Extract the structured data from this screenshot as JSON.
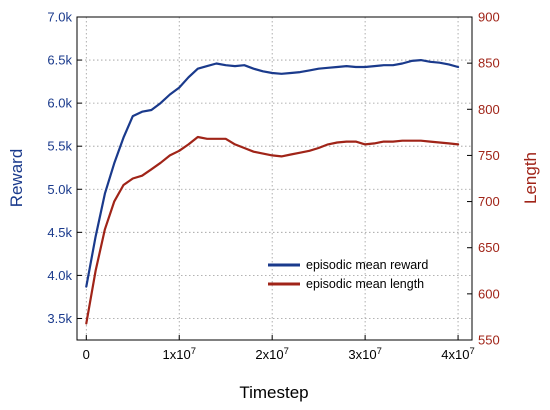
{
  "chart_data": {
    "type": "line",
    "xlabel": "Timestep",
    "ylabel_left": "Reward",
    "ylabel_right": "Length",
    "xlim": [
      -1000000,
      41500000
    ],
    "ylim_left": [
      3250,
      7000
    ],
    "ylim_right": [
      550,
      900
    ],
    "x_ticks": [
      {
        "value": 0,
        "base": "0",
        "exp": ""
      },
      {
        "value": 10000000,
        "base": "1x10",
        "exp": "7"
      },
      {
        "value": 20000000,
        "base": "2x10",
        "exp": "7"
      },
      {
        "value": 30000000,
        "base": "3x10",
        "exp": "7"
      },
      {
        "value": 40000000,
        "base": "4x10",
        "exp": "7"
      }
    ],
    "y_left_ticks": [
      {
        "value": 3500,
        "label": "3.5k"
      },
      {
        "value": 4000,
        "label": "4.0k"
      },
      {
        "value": 4500,
        "label": "4.5k"
      },
      {
        "value": 5000,
        "label": "5.0k"
      },
      {
        "value": 5500,
        "label": "5.5k"
      },
      {
        "value": 6000,
        "label": "6.0k"
      },
      {
        "value": 6500,
        "label": "6.5k"
      },
      {
        "value": 7000,
        "label": "7.0k"
      }
    ],
    "y_right_ticks": [
      {
        "value": 550,
        "label": "550"
      },
      {
        "value": 600,
        "label": "600"
      },
      {
        "value": 650,
        "label": "650"
      },
      {
        "value": 700,
        "label": "700"
      },
      {
        "value": 750,
        "label": "750"
      },
      {
        "value": 800,
        "label": "800"
      },
      {
        "value": 850,
        "label": "850"
      },
      {
        "value": 900,
        "label": "900"
      }
    ],
    "grid": true,
    "legend_position": "lower-right",
    "series": [
      {
        "name": "episodic mean reward",
        "axis": "left",
        "color": "#1a3a8c",
        "x": [
          0,
          1000000,
          2000000,
          3000000,
          4000000,
          5000000,
          6000000,
          7000000,
          8000000,
          9000000,
          10000000,
          11000000,
          12000000,
          13000000,
          14000000,
          15000000,
          16000000,
          17000000,
          18000000,
          19000000,
          20000000,
          21000000,
          22000000,
          23000000,
          24000000,
          25000000,
          26000000,
          27000000,
          28000000,
          29000000,
          30000000,
          31000000,
          32000000,
          33000000,
          34000000,
          35000000,
          36000000,
          37000000,
          38000000,
          39000000,
          40000000
        ],
        "y": [
          3870,
          4450,
          4950,
          5300,
          5600,
          5850,
          5900,
          5920,
          6000,
          6100,
          6180,
          6300,
          6400,
          6430,
          6460,
          6440,
          6430,
          6440,
          6400,
          6370,
          6350,
          6340,
          6350,
          6360,
          6380,
          6400,
          6410,
          6420,
          6430,
          6420,
          6420,
          6430,
          6440,
          6440,
          6460,
          6490,
          6500,
          6480,
          6470,
          6450,
          6420
        ]
      },
      {
        "name": "episodic mean length",
        "axis": "right",
        "color": "#a02418",
        "x": [
          0,
          1000000,
          2000000,
          3000000,
          4000000,
          5000000,
          6000000,
          7000000,
          8000000,
          9000000,
          10000000,
          11000000,
          12000000,
          13000000,
          14000000,
          15000000,
          16000000,
          17000000,
          18000000,
          19000000,
          20000000,
          21000000,
          22000000,
          23000000,
          24000000,
          25000000,
          26000000,
          27000000,
          28000000,
          29000000,
          30000000,
          31000000,
          32000000,
          33000000,
          34000000,
          35000000,
          36000000,
          37000000,
          38000000,
          39000000,
          40000000
        ],
        "y": [
          568,
          625,
          670,
          700,
          718,
          725,
          728,
          735,
          742,
          750,
          755,
          762,
          770,
          768,
          768,
          768,
          762,
          758,
          754,
          752,
          750,
          749,
          751,
          753,
          755,
          758,
          762,
          764,
          765,
          765,
          762,
          763,
          765,
          765,
          766,
          766,
          766,
          765,
          764,
          763,
          762
        ]
      }
    ]
  }
}
